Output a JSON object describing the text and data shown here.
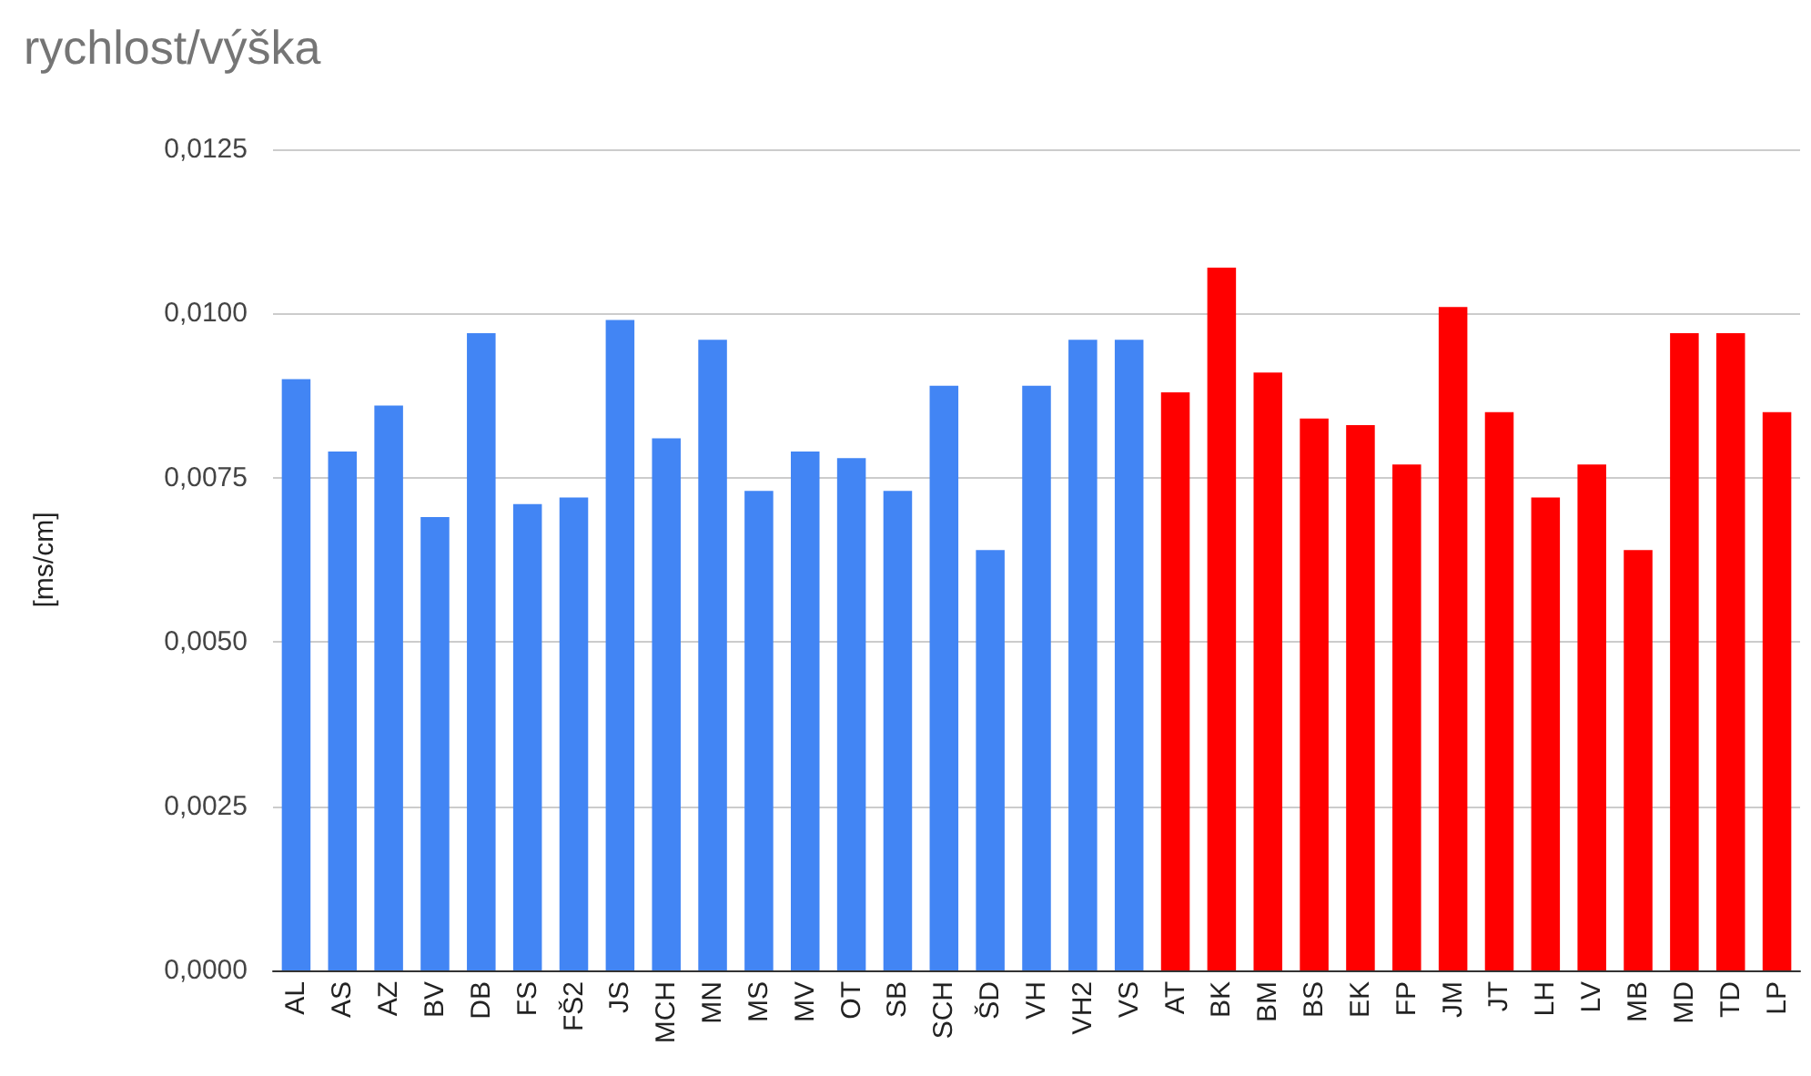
{
  "chart_data": {
    "type": "bar",
    "title": "rychlost/výška",
    "ylabel": "[ms/cm]",
    "categories": [
      "AL",
      "AS",
      "AZ",
      "BV",
      "DB",
      "FS",
      "FŠ2",
      "JS",
      "MCH",
      "MN",
      "MS",
      "MV",
      "OT",
      "SB",
      "SCH",
      "ŠD",
      "VH",
      "VH2",
      "VS",
      "AT",
      "BK",
      "BM",
      "BS",
      "EK",
      "FP",
      "JM",
      "JT",
      "LH",
      "LV",
      "MB",
      "MD",
      "TD",
      "LP"
    ],
    "values": [
      0.009,
      0.0079,
      0.0086,
      0.0069,
      0.0097,
      0.0071,
      0.0072,
      0.0099,
      0.0081,
      0.0096,
      0.0073,
      0.0079,
      0.0078,
      0.0073,
      0.0089,
      0.0064,
      0.0089,
      0.0096,
      0.0096,
      0.0088,
      0.0107,
      0.0091,
      0.0084,
      0.0083,
      0.0077,
      0.0101,
      0.0085,
      0.0072,
      0.0077,
      0.0064,
      0.0097,
      0.0097,
      0.0085
    ],
    "colors": [
      "#4285f4",
      "#4285f4",
      "#4285f4",
      "#4285f4",
      "#4285f4",
      "#4285f4",
      "#4285f4",
      "#4285f4",
      "#4285f4",
      "#4285f4",
      "#4285f4",
      "#4285f4",
      "#4285f4",
      "#4285f4",
      "#4285f4",
      "#4285f4",
      "#4285f4",
      "#4285f4",
      "#4285f4",
      "#ff0000",
      "#ff0000",
      "#ff0000",
      "#ff0000",
      "#ff0000",
      "#ff0000",
      "#ff0000",
      "#ff0000",
      "#ff0000",
      "#ff0000",
      "#ff0000",
      "#ff0000",
      "#ff0000",
      "#ff0000"
    ],
    "ylim": [
      0,
      0.0125
    ],
    "yticks": [
      {
        "value": 0,
        "label": "0,0000"
      },
      {
        "value": 0.0025,
        "label": "0,0025"
      },
      {
        "value": 0.005,
        "label": "0,0050"
      },
      {
        "value": 0.0075,
        "label": "0,0075"
      },
      {
        "value": 0.01,
        "label": "0,0100"
      },
      {
        "value": 0.0125,
        "label": "0,0125"
      }
    ],
    "grid": "y"
  }
}
